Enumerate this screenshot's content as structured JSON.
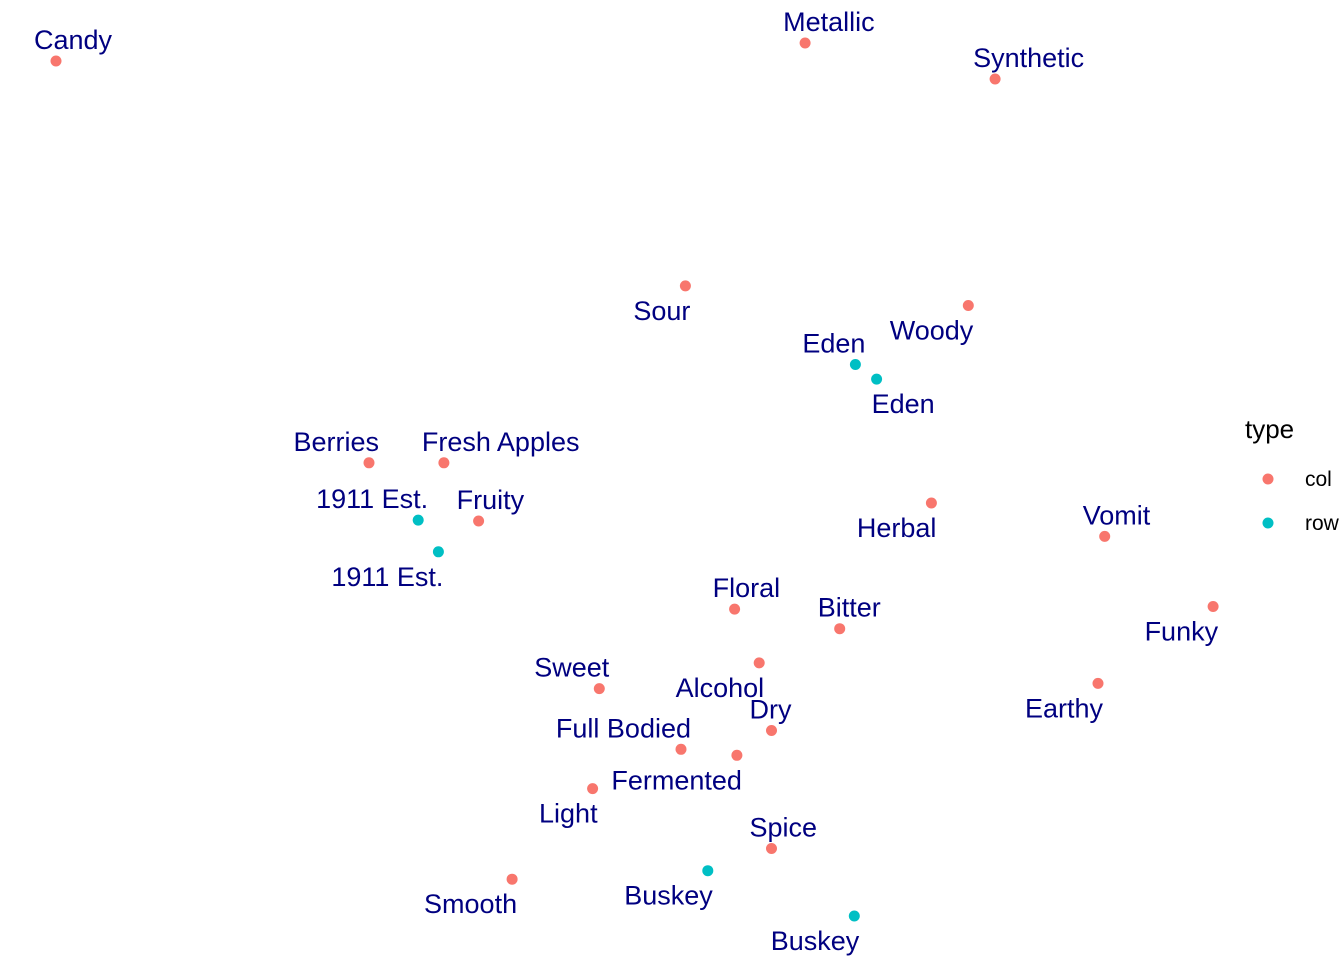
{
  "chart_data": {
    "type": "scatter",
    "title": "",
    "xlabel": "",
    "ylabel": "",
    "grid": false,
    "legend": {
      "title": "type",
      "placement": "right",
      "entries": [
        {
          "label": "col",
          "color": "#F8766D"
        },
        {
          "label": "row",
          "color": "#00BFC4"
        }
      ]
    },
    "xlim": [
      0,
      100
    ],
    "ylim": [
      0,
      100
    ],
    "points": [
      {
        "label": "Candy",
        "type": "col",
        "x": 0.0,
        "y": 100.0,
        "pos": "above-right"
      },
      {
        "label": "Metallic",
        "type": "col",
        "x": 67.0,
        "y": 102.1,
        "pos": "above-right"
      },
      {
        "label": "Synthetic",
        "type": "col",
        "x": 84.0,
        "y": 97.9,
        "pos": "above-right"
      },
      {
        "label": "Sour",
        "type": "col",
        "x": 56.3,
        "y": 73.7,
        "pos": "below-left"
      },
      {
        "label": "Woody",
        "type": "col",
        "x": 81.6,
        "y": 71.4,
        "pos": "below-left"
      },
      {
        "label": "Eden",
        "type": "row",
        "x": 71.5,
        "y": 64.5,
        "pos": "above-left"
      },
      {
        "label": "Eden",
        "type": "row",
        "x": 73.4,
        "y": 62.8,
        "pos": "below-right"
      },
      {
        "label": "Berries",
        "type": "col",
        "x": 28.0,
        "y": 53.0,
        "pos": "above-left"
      },
      {
        "label": "Fresh Apples",
        "type": "col",
        "x": 34.7,
        "y": 53.0,
        "pos": "above-right"
      },
      {
        "label": "1911 Est.",
        "type": "row",
        "x": 32.4,
        "y": 46.3,
        "pos": "above-left"
      },
      {
        "label": "Fruity",
        "type": "col",
        "x": 37.8,
        "y": 46.2,
        "pos": "above-right"
      },
      {
        "label": "1911 Est.",
        "type": "row",
        "x": 34.2,
        "y": 42.6,
        "pos": "below-left"
      },
      {
        "label": "Herbal",
        "type": "col",
        "x": 78.3,
        "y": 48.3,
        "pos": "below-left"
      },
      {
        "label": "Vomit",
        "type": "col",
        "x": 93.8,
        "y": 44.4,
        "pos": "above-right"
      },
      {
        "label": "Floral",
        "type": "col",
        "x": 60.7,
        "y": 35.9,
        "pos": "above-right"
      },
      {
        "label": "Bitter",
        "type": "col",
        "x": 70.1,
        "y": 33.6,
        "pos": "above-right"
      },
      {
        "label": "Funky",
        "type": "col",
        "x": 103.5,
        "y": 36.2,
        "pos": "below-left"
      },
      {
        "label": "Alcohol",
        "type": "col",
        "x": 62.9,
        "y": 29.6,
        "pos": "below-left"
      },
      {
        "label": "Earthy",
        "type": "col",
        "x": 93.2,
        "y": 27.2,
        "pos": "below-left"
      },
      {
        "label": "Sweet",
        "type": "col",
        "x": 48.6,
        "y": 26.6,
        "pos": "above-left"
      },
      {
        "label": "Dry",
        "type": "col",
        "x": 64.0,
        "y": 21.7,
        "pos": "above-right"
      },
      {
        "label": "Full Bodied",
        "type": "col",
        "x": 55.9,
        "y": 19.5,
        "pos": "above-left"
      },
      {
        "label": "Fermented",
        "type": "col",
        "x": 60.9,
        "y": 18.8,
        "pos": "below-left"
      },
      {
        "label": "Light",
        "type": "col",
        "x": 48.0,
        "y": 14.9,
        "pos": "below-left"
      },
      {
        "label": "Spice",
        "type": "col",
        "x": 64.0,
        "y": 7.9,
        "pos": "above-right"
      },
      {
        "label": "Buskey",
        "type": "row",
        "x": 58.3,
        "y": 5.3,
        "pos": "below-left"
      },
      {
        "label": "Smooth",
        "type": "col",
        "x": 40.8,
        "y": 4.3,
        "pos": "below-left"
      },
      {
        "label": "Buskey",
        "type": "row",
        "x": 71.4,
        "y": 0.0,
        "pos": "below-left"
      }
    ]
  }
}
